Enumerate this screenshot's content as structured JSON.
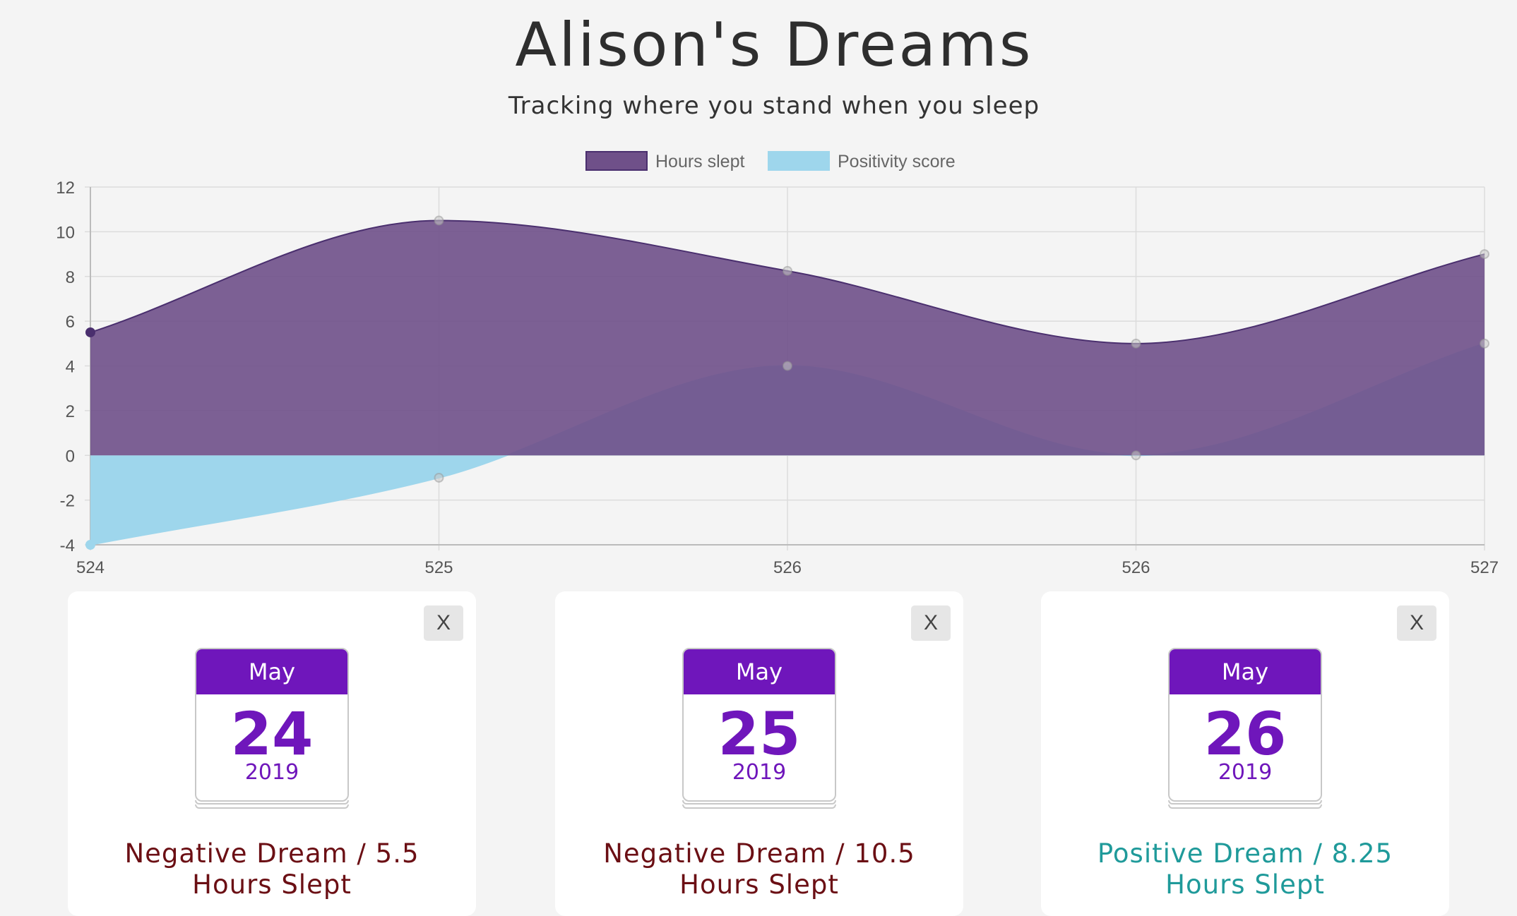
{
  "header": {
    "title": "Alison's Dreams",
    "subtitle": "Tracking where you stand when you sleep"
  },
  "chart_data": {
    "type": "area",
    "x_labels": [
      "524",
      "525",
      "526",
      "526",
      "527"
    ],
    "series": [
      {
        "name": "Hours slept",
        "values": [
          5.5,
          10.5,
          8.25,
          5,
          9
        ],
        "fill": "#6f5089",
        "stroke": "#4a2f6e"
      },
      {
        "name": "Positivity score",
        "values": [
          -4,
          -1,
          4,
          0,
          5
        ],
        "fill": "#9ed6ec",
        "stroke": "#9ed6ec"
      }
    ],
    "ylim": [
      -4,
      12
    ],
    "yticks": [
      "12",
      "10",
      "8",
      "6",
      "4",
      "2",
      "0",
      "-2",
      "-4"
    ],
    "grid": true,
    "legend": "top-center",
    "curve": "smooth"
  },
  "dreams": [
    {
      "month": "May",
      "day": "24",
      "year": "2019",
      "line1": "Negative Dream / 5.5",
      "line2": "Hours Slept",
      "type": "negative",
      "close": "X"
    },
    {
      "month": "May",
      "day": "25",
      "year": "2019",
      "line1": "Negative Dream / 10.5",
      "line2": "Hours Slept",
      "type": "negative",
      "close": "X"
    },
    {
      "month": "May",
      "day": "26",
      "year": "2019",
      "line1": "Positive Dream / 8.25",
      "line2": "Hours Slept",
      "type": "positive",
      "close": "X"
    }
  ],
  "colors": {
    "accent": "#6f16bb",
    "negative_text": "#6b0f14",
    "positive_text": "#1f9a9a"
  }
}
